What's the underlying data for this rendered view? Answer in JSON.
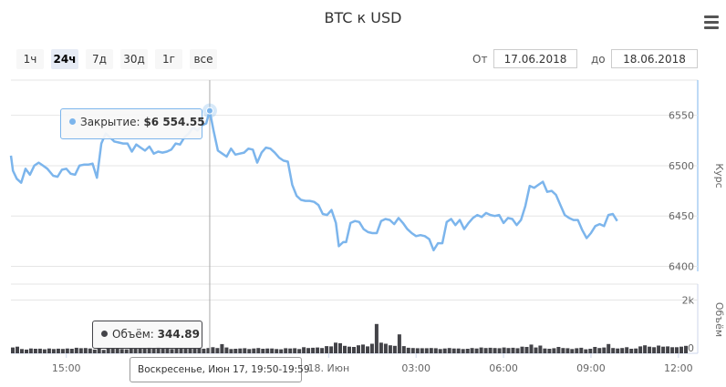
{
  "title": "BTC к USD",
  "menu_icon": "hamburger-menu-icon",
  "zoom_buttons": [
    {
      "label": "1ч",
      "active": false
    },
    {
      "label": "24ч",
      "active": true
    },
    {
      "label": "7д",
      "active": false
    },
    {
      "label": "30д",
      "active": false
    },
    {
      "label": "1г",
      "active": false
    },
    {
      "label": "все",
      "active": false
    }
  ],
  "range": {
    "from_label": "От",
    "from_value": "17.06.2018",
    "to_label": "до",
    "to_value": "18.06.2018"
  },
  "colors": {
    "price_line": "#7cb5ec",
    "volume_bars": "#434348",
    "grid": "#e6e6e6"
  },
  "tooltip_price": {
    "label": "Закрытие:",
    "value": "$6 554.55"
  },
  "tooltip_volume": {
    "label": "Объём:",
    "value": "344.89"
  },
  "crosshair_label": "Воскресенье, Июн 17, 19:50-19:59",
  "chart_data": [
    {
      "type": "line",
      "name": "price",
      "ylabel": "Курс",
      "ylim": [
        6395,
        6585
      ],
      "yticks": [
        6400,
        6450,
        6500,
        6550
      ],
      "xlim": [
        13.1,
        36.35
      ],
      "x_unit": "hours since 00:00 17.06.2018",
      "xticks": [
        {
          "x": 15,
          "label": "15:00"
        },
        {
          "x": 24,
          "label": "18. Июн"
        },
        {
          "x": 27,
          "label": "03:00"
        },
        {
          "x": 30,
          "label": "06:00"
        },
        {
          "x": 33,
          "label": "09:00"
        },
        {
          "x": 36,
          "label": "12:00"
        }
      ],
      "points": [
        [
          13.1,
          6510
        ],
        [
          13.17,
          6495
        ],
        [
          13.3,
          6487
        ],
        [
          13.45,
          6483
        ],
        [
          13.6,
          6497
        ],
        [
          13.75,
          6491
        ],
        [
          13.9,
          6500
        ],
        [
          14.05,
          6503
        ],
        [
          14.2,
          6500
        ],
        [
          14.35,
          6497
        ],
        [
          14.55,
          6490
        ],
        [
          14.7,
          6489
        ],
        [
          14.85,
          6496
        ],
        [
          15.0,
          6497
        ],
        [
          15.15,
          6492
        ],
        [
          15.3,
          6491
        ],
        [
          15.45,
          6500
        ],
        [
          15.6,
          6501
        ],
        [
          15.75,
          6501
        ],
        [
          15.9,
          6502
        ],
        [
          16.05,
          6488
        ],
        [
          16.2,
          6522
        ],
        [
          16.35,
          6532
        ],
        [
          16.5,
          6528
        ],
        [
          16.65,
          6524
        ],
        [
          16.8,
          6523
        ],
        [
          16.95,
          6522
        ],
        [
          17.1,
          6522
        ],
        [
          17.25,
          6514
        ],
        [
          17.4,
          6521
        ],
        [
          17.55,
          6518
        ],
        [
          17.7,
          6515
        ],
        [
          17.85,
          6519
        ],
        [
          18.0,
          6512
        ],
        [
          18.15,
          6514
        ],
        [
          18.3,
          6513
        ],
        [
          18.45,
          6514
        ],
        [
          18.6,
          6516
        ],
        [
          18.75,
          6522
        ],
        [
          18.9,
          6521
        ],
        [
          19.05,
          6528
        ],
        [
          19.2,
          6532
        ],
        [
          19.35,
          6538
        ],
        [
          19.5,
          6535
        ],
        [
          19.65,
          6540
        ],
        [
          19.8,
          6542
        ],
        [
          19.92,
          6554.55
        ],
        [
          20.05,
          6535
        ],
        [
          20.2,
          6515
        ],
        [
          20.35,
          6512
        ],
        [
          20.5,
          6509
        ],
        [
          20.65,
          6517
        ],
        [
          20.8,
          6511
        ],
        [
          20.95,
          6512
        ],
        [
          21.1,
          6513
        ],
        [
          21.25,
          6517
        ],
        [
          21.4,
          6516
        ],
        [
          21.55,
          6503
        ],
        [
          21.7,
          6513
        ],
        [
          21.85,
          6518
        ],
        [
          22.0,
          6517
        ],
        [
          22.15,
          6513
        ],
        [
          22.3,
          6508
        ],
        [
          22.45,
          6505
        ],
        [
          22.6,
          6504
        ],
        [
          22.75,
          6481
        ],
        [
          22.9,
          6470
        ],
        [
          23.05,
          6466
        ],
        [
          23.2,
          6465
        ],
        [
          23.35,
          6465
        ],
        [
          23.5,
          6464
        ],
        [
          23.65,
          6461
        ],
        [
          23.8,
          6452
        ],
        [
          23.95,
          6451
        ],
        [
          24.1,
          6456
        ],
        [
          24.25,
          6443
        ],
        [
          24.35,
          6420
        ],
        [
          24.5,
          6424
        ],
        [
          24.6,
          6424
        ],
        [
          24.75,
          6443
        ],
        [
          24.9,
          6445
        ],
        [
          25.05,
          6444
        ],
        [
          25.2,
          6437
        ],
        [
          25.35,
          6434
        ],
        [
          25.5,
          6433
        ],
        [
          25.65,
          6433
        ],
        [
          25.8,
          6445
        ],
        [
          25.95,
          6447
        ],
        [
          26.1,
          6446
        ],
        [
          26.25,
          6442
        ],
        [
          26.4,
          6448
        ],
        [
          26.55,
          6443
        ],
        [
          26.7,
          6437
        ],
        [
          26.85,
          6433
        ],
        [
          27.0,
          6430
        ],
        [
          27.15,
          6431
        ],
        [
          27.3,
          6430
        ],
        [
          27.45,
          6427
        ],
        [
          27.6,
          6416
        ],
        [
          27.75,
          6423
        ],
        [
          27.9,
          6423
        ],
        [
          28.05,
          6444
        ],
        [
          28.2,
          6447
        ],
        [
          28.35,
          6441
        ],
        [
          28.5,
          6446
        ],
        [
          28.65,
          6437
        ],
        [
          28.8,
          6443
        ],
        [
          28.95,
          6448
        ],
        [
          29.1,
          6451
        ],
        [
          29.25,
          6449
        ],
        [
          29.4,
          6453
        ],
        [
          29.55,
          6451
        ],
        [
          29.7,
          6450
        ],
        [
          29.85,
          6451
        ],
        [
          30.0,
          6443
        ],
        [
          30.15,
          6448
        ],
        [
          30.3,
          6447
        ],
        [
          30.45,
          6441
        ],
        [
          30.6,
          6446
        ],
        [
          30.75,
          6460
        ],
        [
          30.9,
          6480
        ],
        [
          31.05,
          6478
        ],
        [
          31.2,
          6481
        ],
        [
          31.35,
          6484
        ],
        [
          31.5,
          6474
        ],
        [
          31.65,
          6475
        ],
        [
          31.8,
          6471
        ],
        [
          31.95,
          6461
        ],
        [
          32.1,
          6451
        ],
        [
          32.25,
          6448
        ],
        [
          32.4,
          6446
        ],
        [
          32.55,
          6446
        ],
        [
          32.7,
          6436
        ],
        [
          32.85,
          6428
        ],
        [
          33.0,
          6433
        ],
        [
          33.15,
          6440
        ],
        [
          33.3,
          6442
        ],
        [
          33.45,
          6440
        ],
        [
          33.6,
          6451
        ],
        [
          33.75,
          6452
        ],
        [
          33.9,
          6445
        ]
      ]
    },
    {
      "type": "bar",
      "name": "volume",
      "ylabel": "Объём",
      "ylim": [
        0,
        2600
      ],
      "yticks": [
        {
          "y": 0,
          "label": "0"
        },
        {
          "y": 2000,
          "label": "2k"
        }
      ],
      "values": [
        220,
        250,
        160,
        140,
        180,
        170,
        175,
        150,
        180,
        160,
        175,
        165,
        180,
        170,
        210,
        190,
        200,
        180,
        140,
        170,
        130,
        180,
        190,
        170,
        160,
        150,
        170,
        180,
        180,
        200,
        230,
        170,
        250,
        200,
        220,
        160,
        170,
        170,
        190,
        170,
        180,
        200,
        175,
        200,
        230,
        200,
        344.89,
        220,
        160,
        170,
        180,
        190,
        160,
        180,
        200,
        170,
        180,
        180,
        160,
        150,
        190,
        180,
        190,
        160,
        230,
        200,
        210,
        220,
        200,
        270,
        260,
        400,
        380,
        280,
        250,
        240,
        300,
        330,
        260,
        360,
        1100,
        400,
        360,
        300,
        280,
        710,
        270,
        210,
        200,
        190,
        190,
        190,
        200,
        190,
        160,
        180,
        200,
        180,
        180,
        160,
        170,
        200,
        180,
        220,
        200,
        210,
        200,
        190,
        220,
        200,
        210,
        190,
        250,
        240,
        330,
        220,
        290,
        180,
        170,
        190,
        240,
        200,
        190,
        160,
        190,
        210,
        150,
        170,
        240,
        200,
        220,
        350,
        200,
        180,
        200,
        230,
        170,
        180,
        260,
        300,
        250,
        230,
        290,
        250,
        260,
        230,
        230,
        250,
        280
      ]
    }
  ]
}
